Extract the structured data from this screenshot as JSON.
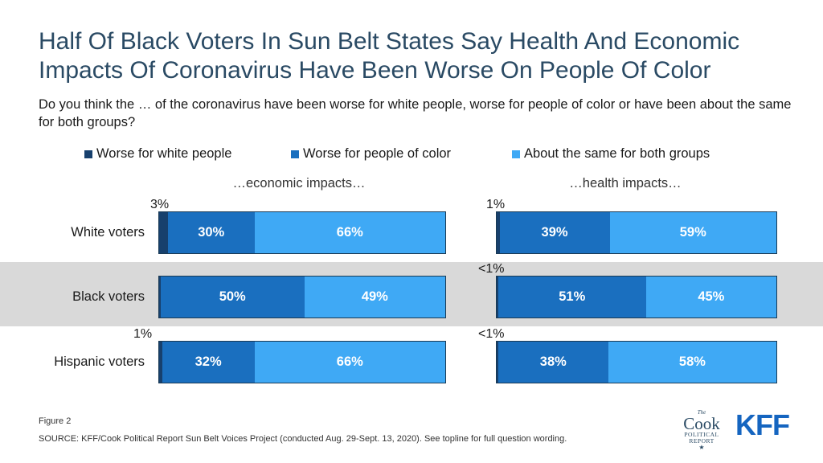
{
  "title": "Half Of Black Voters In Sun Belt States Say Health And Economic Impacts Of Coronavirus Have Been Worse On People Of Color",
  "subtitle": "Do you think the … of the coronavirus have been worse for white people, worse for people of color or have been about the same for both groups?",
  "legend": [
    {
      "label": "Worse for white people",
      "color": "#17406d"
    },
    {
      "label": "Worse for people of color",
      "color": "#1a6fbf"
    },
    {
      "label": "About the same for both groups",
      "color": "#3fa9f5"
    }
  ],
  "footer": {
    "figure": "Figure 2",
    "source": "SOURCE: KFF/Cook Political Report Sun Belt Voices Project (conducted Aug. 29-Sept. 13, 2020). See topline for full question wording."
  },
  "logos": {
    "cook_the": "The",
    "cook_name": "Cook",
    "cook_political": "POLITICAL",
    "cook_report": "REPORT",
    "kff": "KFF"
  },
  "chart_data": [
    {
      "type": "bar",
      "orientation": "horizontal",
      "stacked": true,
      "title": "…economic impacts…",
      "categories": [
        "White voters",
        "Black voters",
        "Hispanic voters"
      ],
      "series": [
        {
          "name": "Worse for white people",
          "values": [
            3,
            0.5,
            1
          ],
          "labels": [
            "3%",
            "",
            "1%"
          ],
          "color": "#17406d"
        },
        {
          "name": "Worse for people of color",
          "values": [
            30,
            50,
            32
          ],
          "labels": [
            "30%",
            "50%",
            "32%"
          ],
          "color": "#1a6fbf"
        },
        {
          "name": "About the same for both groups",
          "values": [
            66,
            49,
            66
          ],
          "labels": [
            "66%",
            "49%",
            "66%"
          ],
          "color": "#3fa9f5"
        }
      ]
    },
    {
      "type": "bar",
      "orientation": "horizontal",
      "stacked": true,
      "title": "…health impacts…",
      "categories": [
        "White voters",
        "Black voters",
        "Hispanic voters"
      ],
      "series": [
        {
          "name": "Worse for white people",
          "values": [
            1,
            0.5,
            0.5
          ],
          "labels": [
            "1%",
            "<1%",
            "<1%"
          ],
          "color": "#17406d"
        },
        {
          "name": "Worse for people of color",
          "values": [
            39,
            51,
            38
          ],
          "labels": [
            "39%",
            "51%",
            "38%"
          ],
          "color": "#1a6fbf"
        },
        {
          "name": "About the same for both groups",
          "values": [
            59,
            45,
            58
          ],
          "labels": [
            "59%",
            "45%",
            "58%"
          ],
          "color": "#3fa9f5"
        }
      ]
    }
  ]
}
